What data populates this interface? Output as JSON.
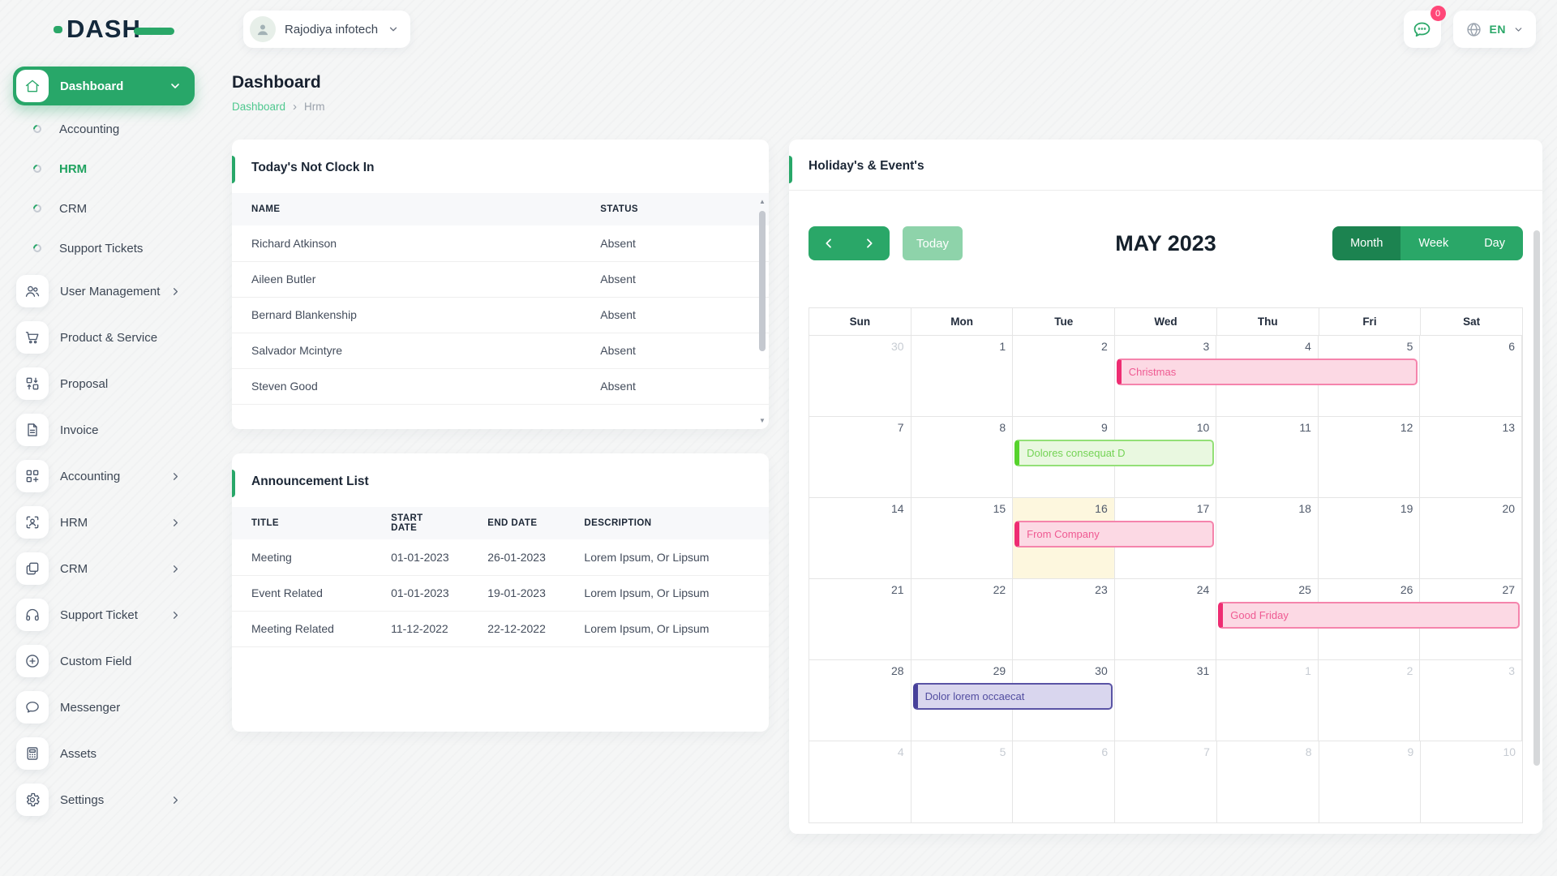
{
  "theme": {
    "primary_green": "#28a769",
    "dark_green": "#1c8350",
    "light_green_button": "#8ed3aa",
    "badge_pink": "#ff4778",
    "link_green": "#4fc88f",
    "today_cell": "#fdf7de",
    "event_colors": {
      "pink": {
        "bg": "#fcd9e4",
        "border": "#f584ac",
        "accent": "#ee2d72",
        "text": "#ef5a92"
      },
      "green": {
        "bg": "#e9f8e0",
        "border": "#93e077",
        "accent": "#56d32c",
        "text": "#74d355"
      },
      "purple": {
        "bg": "#d9d6ee",
        "border": "#5a54a5",
        "accent": "#47409a",
        "text": "#524da0"
      }
    }
  },
  "brand": {
    "logo_text": "DASH"
  },
  "topbar": {
    "company": {
      "name": "Rajodiya infotech"
    },
    "notifications": {
      "count": "0"
    },
    "language": {
      "code": "EN"
    }
  },
  "sidebar": {
    "items": [
      {
        "label": "Dashboard",
        "icon": "home",
        "chevron": "down",
        "active": true
      },
      {
        "label": "Accounting",
        "sub": true
      },
      {
        "label": "HRM",
        "sub": true,
        "active": true
      },
      {
        "label": "CRM",
        "sub": true
      },
      {
        "label": "Support Tickets",
        "sub": true
      },
      {
        "label": "User Management",
        "icon": "users",
        "chevron": "right"
      },
      {
        "label": "Product & Service",
        "icon": "cart"
      },
      {
        "label": "Proposal",
        "icon": "proposal"
      },
      {
        "label": "Invoice",
        "icon": "invoice"
      },
      {
        "label": "Accounting",
        "icon": "accounting",
        "chevron": "right"
      },
      {
        "label": "HRM",
        "icon": "hrm",
        "chevron": "right"
      },
      {
        "label": "CRM",
        "icon": "crm",
        "chevron": "right"
      },
      {
        "label": "Support Ticket",
        "icon": "headset",
        "chevron": "right"
      },
      {
        "label": "Custom Field",
        "icon": "plus-circle"
      },
      {
        "label": "Messenger",
        "icon": "chat"
      },
      {
        "label": "Assets",
        "icon": "calculator"
      },
      {
        "label": "Settings",
        "icon": "gear",
        "chevron": "right"
      }
    ]
  },
  "page": {
    "title": "Dashboard",
    "breadcrumb": {
      "root": "Dashboard",
      "separator": "›",
      "current": "Hrm"
    }
  },
  "clockin": {
    "title": "Today's Not Clock In",
    "columns": [
      "NAME",
      "STATUS"
    ],
    "rows": [
      {
        "name": "Richard Atkinson",
        "status": "Absent"
      },
      {
        "name": "Aileen Butler",
        "status": "Absent"
      },
      {
        "name": "Bernard Blankenship",
        "status": "Absent"
      },
      {
        "name": "Salvador Mcintyre",
        "status": "Absent"
      },
      {
        "name": "Steven Good",
        "status": "Absent"
      }
    ]
  },
  "announcements": {
    "title": "Announcement List",
    "columns": [
      "TITLE",
      "START DATE",
      "END DATE",
      "DESCRIPTION"
    ],
    "rows": [
      {
        "title": "Meeting",
        "start": "01-01-2023",
        "end": "26-01-2023",
        "description": "Lorem Ipsum, Or Lipsum"
      },
      {
        "title": "Event Related",
        "start": "01-01-2023",
        "end": "19-01-2023",
        "description": "Lorem Ipsum, Or Lipsum"
      },
      {
        "title": "Meeting Related",
        "start": "11-12-2022",
        "end": "22-12-2022",
        "description": "Lorem Ipsum, Or Lipsum"
      }
    ]
  },
  "calendar": {
    "title": "Holiday's & Event's",
    "toolbar": {
      "today_label": "Today",
      "view_title": "MAY 2023",
      "views": [
        "Month",
        "Week",
        "Day"
      ],
      "active_view": "Month"
    },
    "weekdays": [
      "Sun",
      "Mon",
      "Tue",
      "Wed",
      "Thu",
      "Fri",
      "Sat"
    ],
    "weeks": [
      [
        {
          "n": 30,
          "other": true
        },
        {
          "n": 1
        },
        {
          "n": 2
        },
        {
          "n": 3
        },
        {
          "n": 4
        },
        {
          "n": 5
        },
        {
          "n": 6
        }
      ],
      [
        {
          "n": 7
        },
        {
          "n": 8
        },
        {
          "n": 9
        },
        {
          "n": 10
        },
        {
          "n": 11
        },
        {
          "n": 12
        },
        {
          "n": 13
        }
      ],
      [
        {
          "n": 14
        },
        {
          "n": 15
        },
        {
          "n": 16,
          "today": true
        },
        {
          "n": 17
        },
        {
          "n": 18
        },
        {
          "n": 19
        },
        {
          "n": 20
        }
      ],
      [
        {
          "n": 21
        },
        {
          "n": 22
        },
        {
          "n": 23
        },
        {
          "n": 24
        },
        {
          "n": 25
        },
        {
          "n": 26
        },
        {
          "n": 27
        }
      ],
      [
        {
          "n": 28
        },
        {
          "n": 29
        },
        {
          "n": 30
        },
        {
          "n": 31
        },
        {
          "n": 1,
          "other": true
        },
        {
          "n": 2,
          "other": true
        },
        {
          "n": 3,
          "other": true
        }
      ],
      [
        {
          "n": 4,
          "other": true
        },
        {
          "n": 5,
          "other": true
        },
        {
          "n": 6,
          "other": true
        },
        {
          "n": 7,
          "other": true
        },
        {
          "n": 8,
          "other": true
        },
        {
          "n": 9,
          "other": true
        },
        {
          "n": 10,
          "other": true
        }
      ]
    ],
    "events": [
      {
        "week": 0,
        "col": 3,
        "span": 3,
        "label": "Christmas",
        "type": "pink"
      },
      {
        "week": 1,
        "col": 2,
        "span": 2,
        "label": "Dolores consequat D",
        "type": "green"
      },
      {
        "week": 2,
        "col": 2,
        "span": 2,
        "label": "From Company",
        "type": "pink"
      },
      {
        "week": 3,
        "col": 4,
        "span": 3,
        "label": "Good Friday",
        "type": "pink"
      },
      {
        "week": 4,
        "col": 1,
        "span": 2,
        "label": "Dolor lorem occaecat",
        "type": "purple"
      }
    ]
  }
}
